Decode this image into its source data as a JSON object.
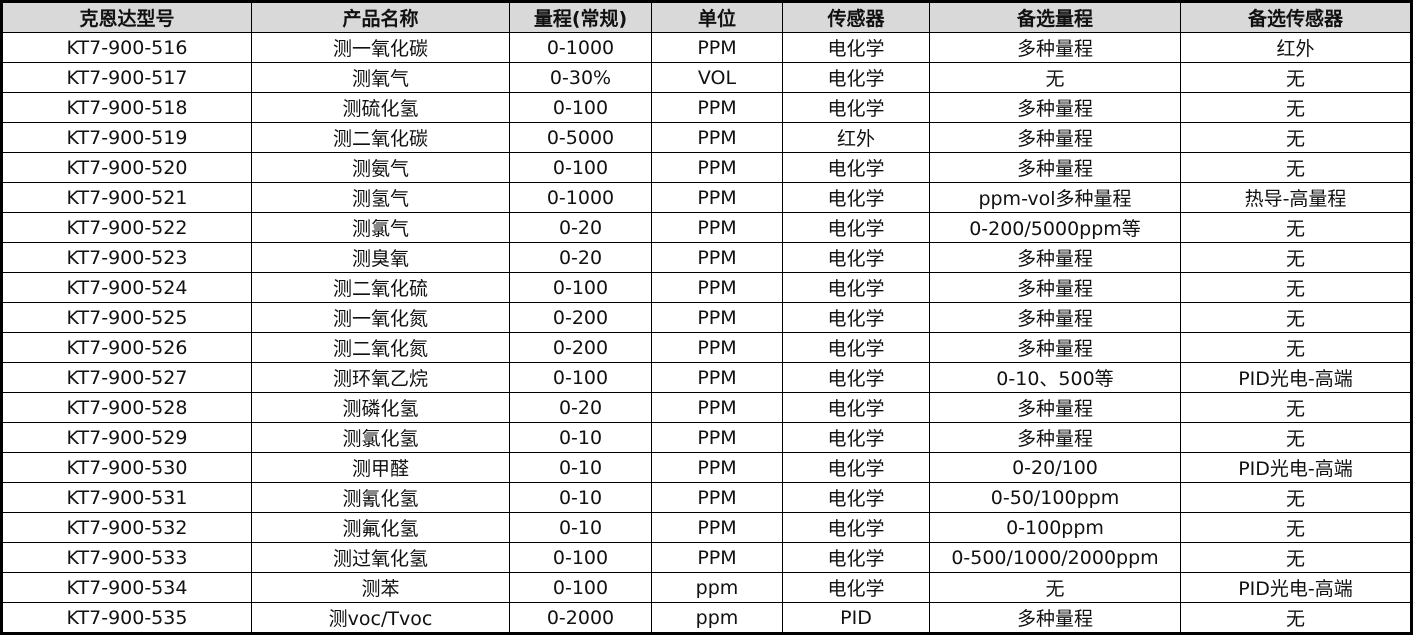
{
  "table": {
    "headers": [
      "克恩达型号",
      "产品名称",
      "量程(常规)",
      "单位",
      "传感器",
      "备选量程",
      "备选传感器"
    ],
    "rows": [
      [
        "KT7-900-516",
        "测一氧化碳",
        "0-1000",
        "PPM",
        "电化学",
        "多种量程",
        "红外"
      ],
      [
        "KT7-900-517",
        "测氧气",
        "0-30%",
        "VOL",
        "电化学",
        "无",
        "无"
      ],
      [
        "KT7-900-518",
        "测硫化氢",
        "0-100",
        "PPM",
        "电化学",
        "多种量程",
        "无"
      ],
      [
        "KT7-900-519",
        "测二氧化碳",
        "0-5000",
        "PPM",
        "红外",
        "多种量程",
        "无"
      ],
      [
        "KT7-900-520",
        "测氨气",
        "0-100",
        "PPM",
        "电化学",
        "多种量程",
        "无"
      ],
      [
        "KT7-900-521",
        "测氢气",
        "0-1000",
        "PPM",
        "电化学",
        "ppm-vol多种量程",
        "热导-高量程"
      ],
      [
        "KT7-900-522",
        "测氯气",
        "0-20",
        "PPM",
        "电化学",
        "0-200/5000ppm等",
        "无"
      ],
      [
        "KT7-900-523",
        "测臭氧",
        "0-20",
        "PPM",
        "电化学",
        "多种量程",
        "无"
      ],
      [
        "KT7-900-524",
        "测二氧化硫",
        "0-100",
        "PPM",
        "电化学",
        "多种量程",
        "无"
      ],
      [
        "KT7-900-525",
        "测一氧化氮",
        "0-200",
        "PPM",
        "电化学",
        "多种量程",
        "无"
      ],
      [
        "KT7-900-526",
        "测二氧化氮",
        "0-200",
        "PPM",
        "电化学",
        "多种量程",
        "无"
      ],
      [
        "KT7-900-527",
        "测环氧乙烷",
        "0-100",
        "PPM",
        "电化学",
        "0-10、500等",
        "PID光电-高端"
      ],
      [
        "KT7-900-528",
        "测磷化氢",
        "0-20",
        "PPM",
        "电化学",
        "多种量程",
        "无"
      ],
      [
        "KT7-900-529",
        "测氯化氢",
        "0-10",
        "PPM",
        "电化学",
        "多种量程",
        "无"
      ],
      [
        "KT7-900-530",
        "测甲醛",
        "0-10",
        "PPM",
        "电化学",
        "0-20/100",
        "PID光电-高端"
      ],
      [
        "KT7-900-531",
        "测氰化氢",
        "0-10",
        "PPM",
        "电化学",
        "0-50/100ppm",
        "无"
      ],
      [
        "KT7-900-532",
        "测氟化氢",
        "0-10",
        "PPM",
        "电化学",
        "0-100ppm",
        "无"
      ],
      [
        "KT7-900-533",
        "测过氧化氢",
        "0-100",
        "PPM",
        "电化学",
        "0-500/1000/2000ppm",
        "无"
      ],
      [
        "KT7-900-534",
        "测苯",
        "0-100",
        "ppm",
        "电化学",
        "无",
        "PID光电-高端"
      ],
      [
        "KT7-900-535",
        "测voc/Tvoc",
        "0-2000",
        "ppm",
        "PID",
        "多种量程",
        "无"
      ]
    ]
  }
}
